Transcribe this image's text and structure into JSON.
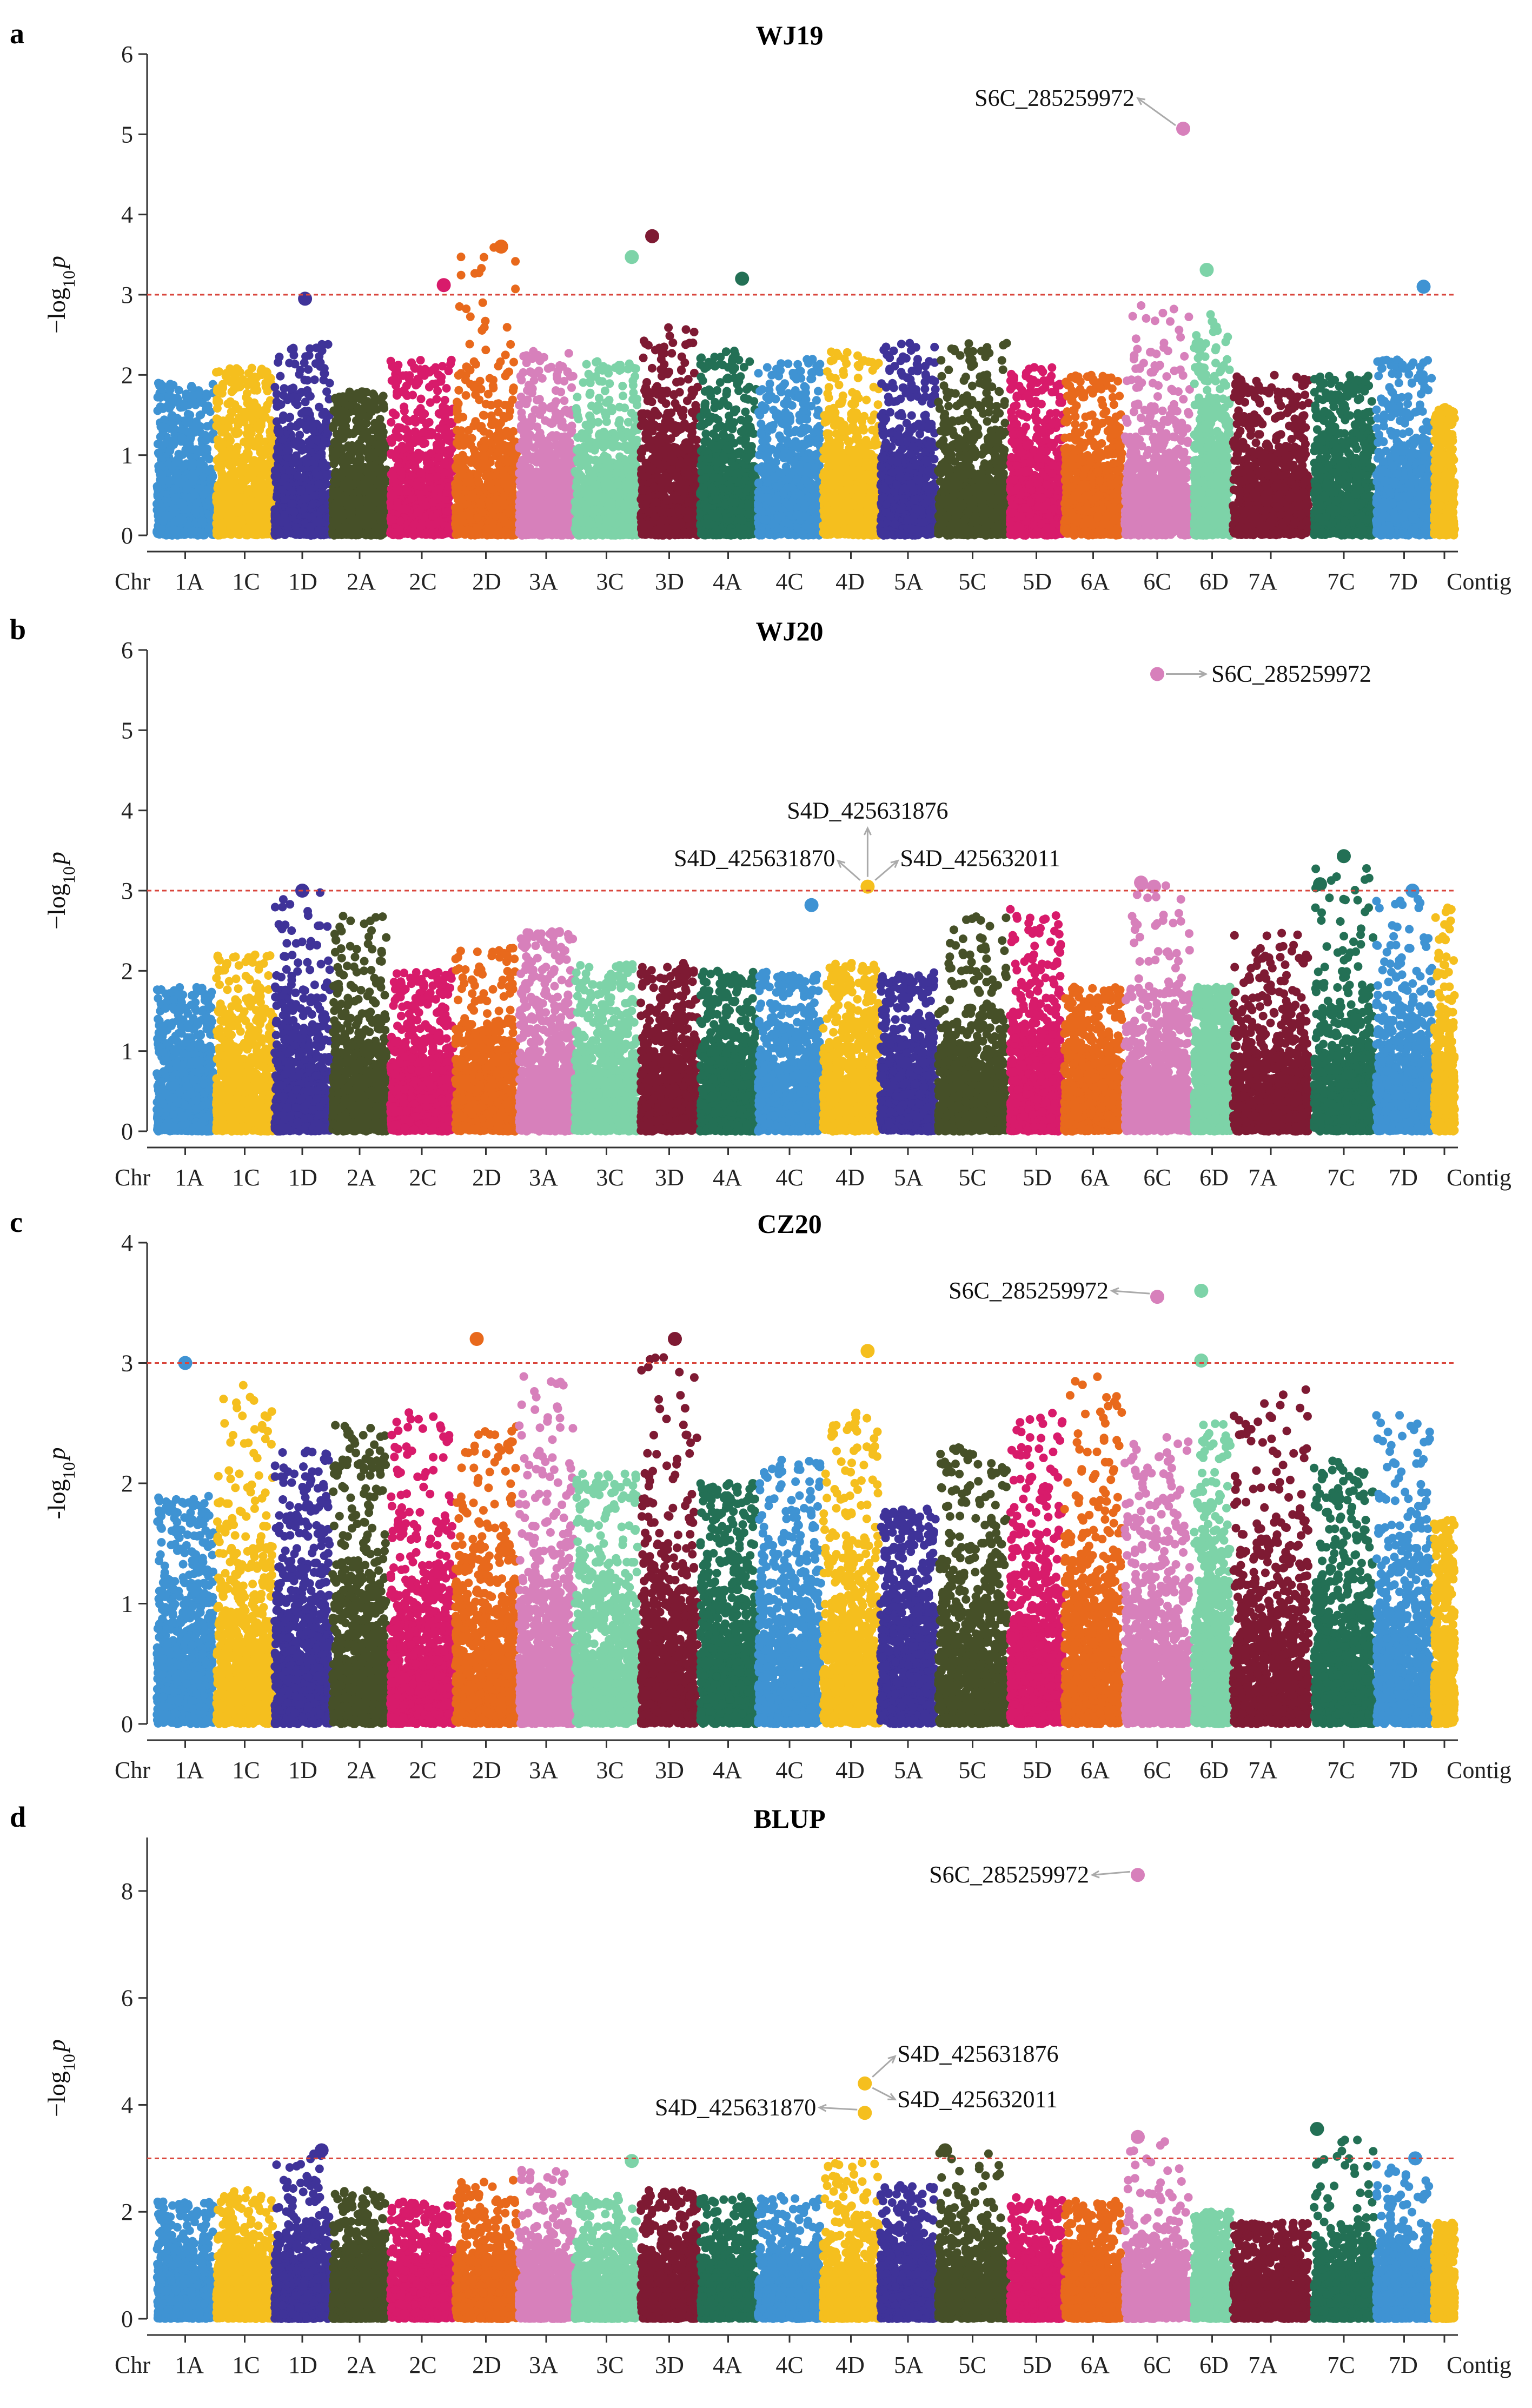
{
  "chart_data": [
    {
      "type": "scatter",
      "panel": "a",
      "title": "WJ19",
      "ylabel_main": "−log",
      "ylabel_sub": "10",
      "ylabel_var": "p",
      "ylim": [
        0,
        6
      ],
      "yticks": [
        "0",
        "1",
        "2",
        "3",
        "4",
        "5",
        "6"
      ],
      "threshold": 3,
      "seed": 11,
      "chromosomes": [
        "1A",
        "1C",
        "1D",
        "2A",
        "2C",
        "2D",
        "3A",
        "3C",
        "3D",
        "4A",
        "4C",
        "4D",
        "5A",
        "5C",
        "5D",
        "6A",
        "6C",
        "6D",
        "7A",
        "7C",
        "7D",
        "Contig"
      ],
      "chr_axis_label": "Chr",
      "peaks": [
        1.9,
        2.1,
        2.4,
        1.8,
        2.2,
        3.6,
        2.3,
        2.2,
        2.6,
        2.3,
        2.2,
        2.3,
        2.4,
        2.4,
        2.1,
        2.0,
        2.9,
        2.9,
        2.0,
        2.0,
        2.2,
        1.6
      ],
      "highlights": [
        {
          "chr": "1D",
          "pos": 0.55,
          "y": 2.95
        },
        {
          "chr": "2C",
          "pos": 0.85,
          "y": 3.12
        },
        {
          "chr": "2D",
          "pos": 0.75,
          "y": 3.6
        },
        {
          "chr": "3C",
          "pos": 0.9,
          "y": 3.47
        },
        {
          "chr": "3D",
          "pos": 0.2,
          "y": 3.73
        },
        {
          "chr": "4A",
          "pos": 0.75,
          "y": 3.2
        },
        {
          "chr": "6C",
          "pos": 0.9,
          "y": 5.07
        },
        {
          "chr": "6D",
          "pos": 0.35,
          "y": 3.31
        },
        {
          "chr": "7D",
          "pos": 0.85,
          "y": 3.1
        }
      ],
      "annotations": [
        {
          "text": "S6C_285259972",
          "x_chr": "6C",
          "x_pos": 0.9,
          "y": 5.07,
          "label_y": 5.45,
          "side": "left"
        }
      ]
    },
    {
      "type": "scatter",
      "panel": "b",
      "title": "WJ20",
      "ylabel_main": "−log",
      "ylabel_sub": "10",
      "ylabel_var": "p",
      "ylim": [
        0,
        6
      ],
      "yticks": [
        "0",
        "1",
        "2",
        "3",
        "4",
        "5",
        "6"
      ],
      "threshold": 3,
      "seed": 23,
      "chromosomes": [
        "1A",
        "1C",
        "1D",
        "2A",
        "2C",
        "2D",
        "3A",
        "3C",
        "3D",
        "4A",
        "4C",
        "4D",
        "5A",
        "5C",
        "5D",
        "6A",
        "6C",
        "6D",
        "7A",
        "7C",
        "7D",
        "Contig"
      ],
      "chr_axis_label": "Chr",
      "peaks": [
        1.8,
        2.2,
        3.0,
        2.7,
        2.0,
        2.3,
        2.5,
        2.1,
        2.1,
        2.0,
        2.0,
        2.1,
        2.0,
        2.7,
        2.8,
        1.8,
        3.1,
        1.8,
        2.5,
        3.4,
        2.9,
        2.8
      ],
      "highlights": [
        {
          "chr": "1D",
          "pos": 0.5,
          "y": 3.0
        },
        {
          "chr": "4C",
          "pos": 0.85,
          "y": 2.82
        },
        {
          "chr": "4D",
          "pos": 0.8,
          "y": 3.05
        },
        {
          "chr": "6C",
          "pos": 0.25,
          "y": 3.1
        },
        {
          "chr": "6C",
          "pos": 0.45,
          "y": 3.05
        },
        {
          "chr": "7C",
          "pos": 0.1,
          "y": 3.08
        },
        {
          "chr": "7C",
          "pos": 0.5,
          "y": 3.43
        },
        {
          "chr": "7D",
          "pos": 0.65,
          "y": 3.0
        }
      ],
      "annotations": [
        {
          "text": "S6C_285259972",
          "x_chr": "6C",
          "x_pos": 0.5,
          "y": 5.7,
          "label_y": 5.7,
          "side": "right"
        },
        {
          "text": "S4D_425631876",
          "x_chr": "4D",
          "x_pos": 0.8,
          "y": 3.05,
          "label_y": 3.9,
          "side": "up"
        },
        {
          "text": "S4D_425631870",
          "x_chr": "4D",
          "x_pos": 0.8,
          "y": 3.05,
          "label_y": 3.4,
          "side": "upleft"
        },
        {
          "text": "S4D_425632011",
          "x_chr": "4D",
          "x_pos": 0.8,
          "y": 3.05,
          "label_y": 3.4,
          "side": "upright"
        }
      ]
    },
    {
      "type": "scatter",
      "panel": "c",
      "title": "CZ20",
      "ylabel_main": "-log",
      "ylabel_sub": "10",
      "ylabel_var": "p",
      "ylim": [
        0,
        4
      ],
      "yticks": [
        "0",
        "1",
        "2",
        "3",
        "4"
      ],
      "threshold": 3,
      "seed": 37,
      "chromosomes": [
        "1A",
        "1C",
        "1D",
        "2A",
        "2C",
        "2D",
        "3A",
        "3C",
        "3D",
        "4A",
        "4C",
        "4D",
        "5A",
        "5C",
        "5D",
        "6A",
        "6C",
        "6D",
        "7A",
        "7C",
        "7D",
        "Contig"
      ],
      "chr_axis_label": "Chr",
      "peaks": [
        1.9,
        2.9,
        2.3,
        2.5,
        2.6,
        2.5,
        2.9,
        2.1,
        3.1,
        2.0,
        2.2,
        2.6,
        1.8,
        2.3,
        2.6,
        2.9,
        2.4,
        2.5,
        2.8,
        2.2,
        2.6,
        1.7
      ],
      "highlights": [
        {
          "chr": "1A",
          "pos": 0.5,
          "y": 3.0
        },
        {
          "chr": "2D",
          "pos": 0.35,
          "y": 3.2
        },
        {
          "chr": "3D",
          "pos": 0.6,
          "y": 3.2
        },
        {
          "chr": "4D",
          "pos": 0.8,
          "y": 3.1
        },
        {
          "chr": "6C",
          "pos": 0.5,
          "y": 3.55
        },
        {
          "chr": "6D",
          "pos": 0.2,
          "y": 3.6
        },
        {
          "chr": "6D",
          "pos": 0.2,
          "y": 3.02
        }
      ],
      "annotations": [
        {
          "text": "S6C_285259972",
          "x_chr": "6C",
          "x_pos": 0.5,
          "y": 3.55,
          "label_y": 3.6,
          "side": "left"
        }
      ]
    },
    {
      "type": "scatter",
      "panel": "d",
      "title": "BLUP",
      "ylabel_main": "−log",
      "ylabel_sub": "10",
      "ylabel_var": "p",
      "ylim": [
        0,
        9
      ],
      "yticks": [
        "0",
        "2",
        "4",
        "6",
        "8"
      ],
      "threshold": 3,
      "seed": 53,
      "chromosomes": [
        "1A",
        "1C",
        "1D",
        "2A",
        "2C",
        "2D",
        "3A",
        "3C",
        "3D",
        "4A",
        "4C",
        "4D",
        "5A",
        "5C",
        "5D",
        "6A",
        "6C",
        "6D",
        "7A",
        "7C",
        "7D",
        "Contig"
      ],
      "chr_axis_label": "Chr",
      "peaks": [
        2.2,
        2.4,
        3.1,
        2.4,
        2.2,
        2.6,
        2.8,
        2.3,
        2.4,
        2.3,
        2.3,
        3.0,
        2.5,
        3.1,
        2.3,
        2.2,
        3.4,
        2.0,
        1.8,
        3.5,
        2.9,
        1.8
      ],
      "highlights": [
        {
          "chr": "1D",
          "pos": 0.85,
          "y": 3.15
        },
        {
          "chr": "3C",
          "pos": 0.9,
          "y": 2.95
        },
        {
          "chr": "4D",
          "pos": 0.75,
          "y": 4.4
        },
        {
          "chr": "4D",
          "pos": 0.75,
          "y": 3.85
        },
        {
          "chr": "5C",
          "pos": 0.1,
          "y": 3.15
        },
        {
          "chr": "6C",
          "pos": 0.2,
          "y": 3.4
        },
        {
          "chr": "6C",
          "pos": 0.2,
          "y": 8.3
        },
        {
          "chr": "7C",
          "pos": 0.05,
          "y": 3.55
        },
        {
          "chr": "7D",
          "pos": 0.7,
          "y": 3.0
        }
      ],
      "annotations": [
        {
          "text": "S6C_285259972",
          "x_chr": "6C",
          "x_pos": 0.2,
          "y": 8.3,
          "label_y": 8.3,
          "side": "left"
        },
        {
          "text": "S4D_425631876",
          "x_chr": "4D",
          "x_pos": 0.75,
          "y": 4.4,
          "label_y": 4.95,
          "side": "upright"
        },
        {
          "text": "S4D_425632011",
          "x_chr": "4D",
          "x_pos": 0.75,
          "y": 4.4,
          "label_y": 4.1,
          "side": "downright"
        },
        {
          "text": "S4D_425631870",
          "x_chr": "4D",
          "x_pos": 0.75,
          "y": 3.85,
          "label_y": 3.95,
          "side": "left"
        }
      ]
    }
  ],
  "palette": [
    "#3f93d3",
    "#f5bf1e",
    "#3f3399",
    "#465028",
    "#d81b6b",
    "#e8691c",
    "#d780bb",
    "#7dd3a8",
    "#7e1a33",
    "#237055",
    "#3f93d3",
    "#f5bf1e",
    "#3f3399",
    "#465028",
    "#d81b6b",
    "#e8691c",
    "#d780bb",
    "#7dd3a8",
    "#7e1a33",
    "#237055",
    "#3f93d3",
    "#f5bf1e"
  ],
  "threshold_color": "#d9463c"
}
